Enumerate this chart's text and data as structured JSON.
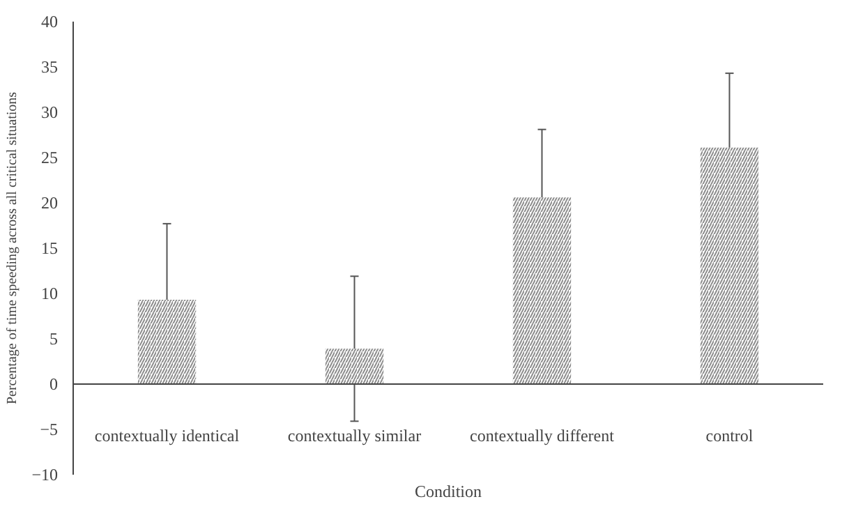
{
  "chart_data": {
    "type": "bar",
    "xlabel": "Condition",
    "ylabel": "Percentage of time speeding across all critical situations",
    "categories": [
      "contextually identical",
      "contextually similar",
      "contextually different",
      "control"
    ],
    "values": [
      9.3,
      3.9,
      20.6,
      26.1
    ],
    "errors": [
      8.4,
      8,
      7.5,
      8.2
    ],
    "color": "#8c8c8c",
    "ylim": [
      -10,
      40
    ],
    "yticks": [
      -10,
      -5,
      0,
      5,
      10,
      15,
      20,
      25,
      30,
      35,
      40
    ],
    "grid": false
  }
}
